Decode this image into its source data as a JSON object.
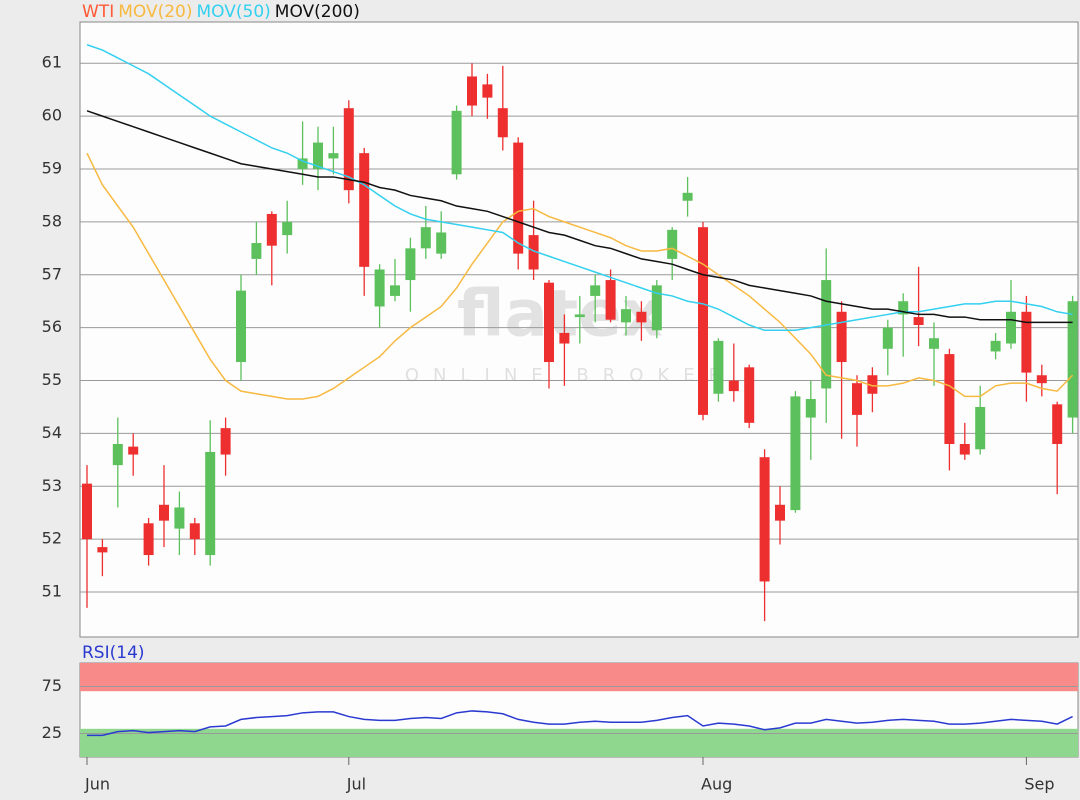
{
  "chart_data": [
    {
      "type": "candlestick",
      "name": "WTI",
      "up_color": "#5cc15c",
      "down_color": "#ee2f2f",
      "legend_color": "#ff5a36",
      "watermark": "flatex",
      "watermark_subtitle": "ONLINE BROKER",
      "open": [
        53.05,
        51.85,
        53.4,
        53.75,
        52.3,
        52.65,
        52.2,
        52.3,
        51.7,
        54.1,
        55.35,
        57.3,
        58.15,
        57.75,
        59.0,
        59.0,
        59.2,
        60.15,
        59.3,
        56.4,
        56.6,
        56.9,
        57.5,
        57.4,
        58.9,
        60.75,
        60.6,
        60.15,
        59.5,
        57.75,
        56.85,
        55.9,
        56.2,
        56.6,
        56.9,
        56.1,
        56.3,
        55.95,
        57.3,
        58.4,
        57.9,
        54.75,
        55.0,
        55.25,
        53.55,
        52.65,
        52.55,
        54.3,
        54.85,
        56.3,
        54.95,
        55.1,
        55.6,
        56.25,
        56.2,
        55.6,
        55.5,
        53.8,
        53.7,
        55.55,
        55.7,
        56.3,
        55.1,
        54.55,
        54.3
      ],
      "high": [
        53.4,
        52.0,
        54.3,
        54.0,
        52.4,
        53.4,
        52.9,
        52.4,
        54.25,
        54.3,
        57.0,
        58.0,
        58.2,
        58.4,
        59.9,
        59.8,
        59.8,
        60.3,
        59.4,
        57.2,
        57.3,
        57.7,
        58.3,
        58.2,
        60.2,
        61.0,
        60.8,
        60.95,
        59.6,
        58.4,
        56.9,
        56.25,
        56.6,
        57.0,
        57.1,
        56.6,
        56.5,
        56.9,
        57.9,
        58.85,
        58.0,
        55.8,
        55.7,
        55.3,
        53.7,
        53.0,
        54.8,
        55.0,
        57.5,
        56.5,
        55.1,
        55.25,
        56.15,
        56.65,
        57.15,
        56.1,
        55.6,
        54.2,
        54.9,
        55.9,
        56.9,
        56.6,
        55.3,
        54.6,
        56.6
      ],
      "low": [
        50.7,
        51.3,
        52.6,
        53.2,
        51.5,
        51.85,
        51.7,
        51.7,
        51.5,
        53.2,
        55.0,
        57.0,
        56.8,
        57.4,
        58.7,
        58.6,
        58.9,
        58.35,
        56.6,
        56.0,
        56.5,
        56.3,
        57.3,
        57.3,
        58.8,
        60.0,
        59.95,
        59.35,
        57.1,
        56.9,
        54.85,
        54.9,
        55.7,
        56.1,
        56.1,
        55.85,
        55.75,
        55.8,
        56.9,
        58.1,
        54.25,
        54.6,
        54.6,
        54.1,
        50.45,
        51.9,
        52.5,
        53.5,
        54.2,
        53.9,
        53.75,
        54.4,
        55.1,
        55.45,
        55.65,
        54.9,
        53.3,
        53.5,
        53.6,
        55.4,
        55.6,
        54.6,
        54.7,
        52.85,
        54.0
      ],
      "close": [
        52.0,
        51.75,
        53.8,
        53.6,
        51.7,
        52.35,
        52.6,
        52.0,
        53.65,
        53.6,
        56.7,
        57.6,
        57.55,
        58.0,
        59.2,
        59.5,
        59.3,
        58.6,
        57.15,
        57.1,
        56.8,
        57.5,
        57.9,
        57.8,
        60.1,
        60.2,
        60.35,
        59.6,
        57.4,
        57.1,
        55.35,
        55.7,
        56.25,
        56.8,
        56.15,
        56.35,
        56.1,
        56.8,
        57.85,
        58.55,
        54.35,
        55.75,
        54.8,
        54.2,
        51.2,
        52.35,
        54.7,
        54.65,
        56.9,
        55.35,
        54.35,
        54.75,
        56.0,
        56.5,
        56.05,
        55.8,
        53.8,
        53.6,
        54.5,
        55.75,
        56.3,
        55.15,
        54.95,
        53.8,
        56.5
      ],
      "series": [
        {
          "name": "MOV(20)",
          "color": "#f7b940",
          "values": [
            59.3,
            58.7,
            58.3,
            57.9,
            57.4,
            56.9,
            56.4,
            55.9,
            55.4,
            55.0,
            54.8,
            54.75,
            54.7,
            54.65,
            54.65,
            54.7,
            54.85,
            55.05,
            55.25,
            55.45,
            55.75,
            56.0,
            56.2,
            56.4,
            56.75,
            57.2,
            57.6,
            58.0,
            58.2,
            58.25,
            58.1,
            58.0,
            57.9,
            57.8,
            57.7,
            57.55,
            57.45,
            57.45,
            57.5,
            57.35,
            57.2,
            57.0,
            56.8,
            56.6,
            56.35,
            56.1,
            55.8,
            55.5,
            55.1,
            55.05,
            55.0,
            54.9,
            54.9,
            54.95,
            55.05,
            55.0,
            54.9,
            54.7,
            54.7,
            54.9,
            54.95,
            54.95,
            54.85,
            54.8,
            55.1
          ]
        },
        {
          "name": "MOV(50)",
          "color": "#33d0f0",
          "values": [
            61.35,
            61.25,
            61.1,
            60.95,
            60.8,
            60.6,
            60.4,
            60.2,
            60.0,
            59.85,
            59.7,
            59.55,
            59.4,
            59.3,
            59.15,
            59.05,
            58.95,
            58.85,
            58.7,
            58.5,
            58.3,
            58.15,
            58.05,
            58.0,
            57.95,
            57.9,
            57.85,
            57.8,
            57.6,
            57.45,
            57.35,
            57.25,
            57.15,
            57.05,
            56.95,
            56.85,
            56.75,
            56.65,
            56.6,
            56.5,
            56.45,
            56.35,
            56.2,
            56.05,
            55.95,
            55.95,
            55.95,
            56.0,
            56.05,
            56.1,
            56.15,
            56.2,
            56.25,
            56.3,
            56.3,
            56.35,
            56.4,
            56.45,
            56.45,
            56.5,
            56.5,
            56.45,
            56.4,
            56.3,
            56.25
          ]
        },
        {
          "name": "MOV(200)",
          "color": "#111111",
          "values": [
            60.1,
            60.0,
            59.9,
            59.8,
            59.7,
            59.6,
            59.5,
            59.4,
            59.3,
            59.2,
            59.1,
            59.05,
            59.0,
            58.95,
            58.9,
            58.85,
            58.85,
            58.8,
            58.75,
            58.65,
            58.6,
            58.5,
            58.45,
            58.4,
            58.3,
            58.25,
            58.2,
            58.1,
            58.0,
            57.9,
            57.8,
            57.75,
            57.65,
            57.55,
            57.5,
            57.4,
            57.3,
            57.25,
            57.2,
            57.1,
            57.0,
            56.95,
            56.9,
            56.8,
            56.75,
            56.7,
            56.65,
            56.6,
            56.5,
            56.45,
            56.4,
            56.35,
            56.35,
            56.3,
            56.25,
            56.25,
            56.2,
            56.2,
            56.15,
            56.15,
            56.15,
            56.1,
            56.1,
            56.1,
            56.1
          ]
        }
      ],
      "ylim": [
        50.15,
        61.78
      ],
      "yticks": [
        51,
        52,
        53,
        54,
        55,
        56,
        57,
        58,
        59,
        60,
        61
      ],
      "grid": true
    },
    {
      "type": "line",
      "categories": [
        "Jun",
        null,
        null,
        null,
        null,
        null,
        null,
        null,
        null,
        null,
        null,
        null,
        null,
        null,
        null,
        null,
        null,
        "Jul",
        null,
        null,
        null,
        null,
        null,
        null,
        null,
        null,
        null,
        null,
        null,
        null,
        null,
        null,
        null,
        null,
        null,
        null,
        null,
        null,
        null,
        null,
        "Aug",
        null,
        null,
        null,
        null,
        null,
        null,
        null,
        null,
        null,
        null,
        null,
        null,
        null,
        null,
        null,
        null,
        null,
        null,
        null,
        null,
        "Sep",
        null,
        null,
        null
      ],
      "series": [
        {
          "name": "RSI(14)",
          "color": "#2a3ad0",
          "values": [
            23,
            23,
            27,
            28,
            26,
            27,
            28,
            27,
            32,
            33,
            40,
            42,
            43,
            44,
            47,
            48,
            48,
            43,
            40,
            39,
            39,
            41,
            42,
            41,
            47,
            49,
            48,
            46,
            40,
            37,
            35,
            35,
            37,
            38,
            37,
            37,
            37,
            39,
            42,
            44,
            33,
            36,
            35,
            33,
            29,
            31,
            36,
            36,
            40,
            38,
            36,
            37,
            39,
            40,
            39,
            38,
            35,
            35,
            36,
            38,
            40,
            39,
            38,
            35,
            43
          ]
        }
      ],
      "overbought": 70,
      "oversold": 30,
      "overbought_color": "#f98a8a",
      "oversold_color": "#8fd68f",
      "ylim": [
        0,
        100
      ],
      "yticks": [
        75,
        25
      ],
      "grid": true
    }
  ]
}
